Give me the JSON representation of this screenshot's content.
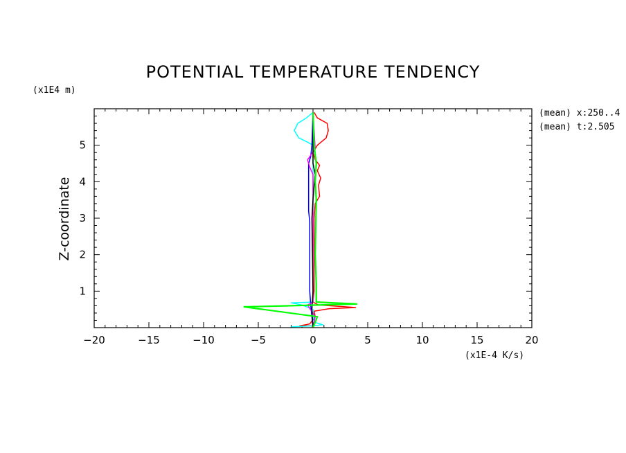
{
  "chart_data": {
    "type": "line",
    "title": "POTENTIAL TEMPERATURE TENDENCY",
    "xlabel": "",
    "ylabel": "Z-coordinate",
    "x_unit": "(x1E-4 K/s)",
    "y_unit": "(x1E4 m)",
    "xlim": [
      -20,
      20
    ],
    "ylim": [
      0,
      6
    ],
    "x_ticks": [
      -20,
      -15,
      -10,
      -5,
      0,
      5,
      10,
      15,
      20
    ],
    "x_tick_labels": [
      "−20",
      "−15",
      "−10",
      "−5",
      "0",
      "5",
      "10",
      "15",
      "20"
    ],
    "y_ticks": [
      1,
      2,
      3,
      4,
      5
    ],
    "y_tick_labels": [
      "1",
      "2",
      "3",
      "4",
      "5"
    ],
    "annotations": [
      "(mean) x:250..4",
      "(mean) t:2.505"
    ],
    "grid": false,
    "series": [
      {
        "color": "#ff0000",
        "points": [
          [
            0.0,
            0.0
          ],
          [
            -0.1,
            0.05
          ],
          [
            -1.2,
            0.05
          ],
          [
            -0.3,
            0.1
          ],
          [
            0.2,
            0.3
          ],
          [
            0.1,
            0.45
          ],
          [
            1.5,
            0.52
          ],
          [
            3.9,
            0.55
          ],
          [
            0.5,
            0.62
          ],
          [
            0.0,
            0.7
          ],
          [
            0.1,
            1.0
          ],
          [
            0.1,
            3.0
          ],
          [
            0.2,
            3.4
          ],
          [
            0.6,
            3.6
          ],
          [
            0.5,
            3.9
          ],
          [
            0.7,
            4.1
          ],
          [
            0.4,
            4.3
          ],
          [
            0.6,
            4.45
          ],
          [
            0.2,
            4.6
          ],
          [
            0.0,
            4.8
          ],
          [
            0.4,
            5.0
          ],
          [
            1.2,
            5.2
          ],
          [
            1.4,
            5.4
          ],
          [
            1.3,
            5.6
          ],
          [
            0.4,
            5.75
          ],
          [
            0.1,
            5.9
          ]
        ]
      },
      {
        "color": "#00ffff",
        "points": [
          [
            -2.0,
            0.02
          ],
          [
            0.0,
            0.05
          ],
          [
            0.9,
            0.08
          ],
          [
            0.1,
            0.15
          ],
          [
            0.0,
            0.5
          ],
          [
            -1.0,
            0.62
          ],
          [
            -2.0,
            0.68
          ],
          [
            0.0,
            0.7
          ],
          [
            0.0,
            5.0
          ],
          [
            -0.6,
            5.1
          ],
          [
            -1.3,
            5.2
          ],
          [
            -1.7,
            5.4
          ],
          [
            -1.4,
            5.6
          ],
          [
            -0.6,
            5.75
          ],
          [
            0.0,
            5.9
          ]
        ]
      },
      {
        "color": "#0000ff",
        "points": [
          [
            0.0,
            0.0
          ],
          [
            -0.1,
            0.3
          ],
          [
            -0.2,
            0.6
          ],
          [
            -0.3,
            1.0
          ],
          [
            -0.3,
            2.9
          ],
          [
            -0.4,
            3.2
          ],
          [
            -0.4,
            4.0
          ],
          [
            -0.4,
            4.5
          ],
          [
            -0.2,
            4.7
          ],
          [
            -0.1,
            5.0
          ],
          [
            0.0,
            5.9
          ]
        ]
      },
      {
        "color": "#ff00ff",
        "points": [
          [
            0.0,
            0.0
          ],
          [
            0.2,
            0.3
          ],
          [
            -0.5,
            0.62
          ],
          [
            0.0,
            0.7
          ],
          [
            0.0,
            4.2
          ],
          [
            -0.3,
            4.4
          ],
          [
            -0.5,
            4.6
          ],
          [
            0.2,
            4.9
          ],
          [
            0.0,
            5.9
          ]
        ]
      },
      {
        "color": "#000000",
        "points": [
          [
            0.0,
            0.0
          ],
          [
            -0.1,
            0.5
          ],
          [
            0.0,
            1.0
          ],
          [
            -0.1,
            3.0
          ],
          [
            0.0,
            3.5
          ],
          [
            0.1,
            3.9
          ],
          [
            0.2,
            4.2
          ],
          [
            0.0,
            4.5
          ],
          [
            0.0,
            5.0
          ],
          [
            0.0,
            5.9
          ]
        ]
      },
      {
        "color": "#00ff00",
        "points": [
          [
            0.0,
            0.0
          ],
          [
            0.4,
            0.3
          ],
          [
            -6.3,
            0.57
          ],
          [
            -2.0,
            0.6
          ],
          [
            4.0,
            0.65
          ],
          [
            0.3,
            0.7
          ],
          [
            0.3,
            1.2
          ],
          [
            0.2,
            2.0
          ],
          [
            0.3,
            3.5
          ],
          [
            0.2,
            4.0
          ],
          [
            0.3,
            4.5
          ],
          [
            0.1,
            5.0
          ],
          [
            0.0,
            5.9
          ]
        ]
      }
    ]
  }
}
